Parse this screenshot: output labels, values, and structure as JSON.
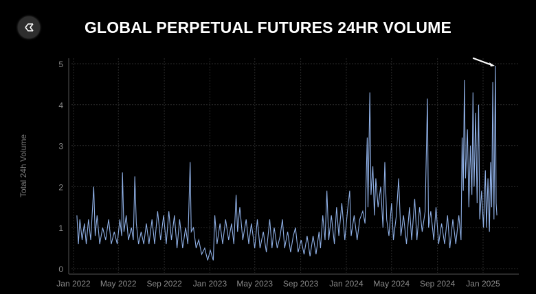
{
  "header": {
    "title": "GLOBAL PERPETUAL FUTURES 24HR VOLUME",
    "logo": "sigma-hexagon-logo"
  },
  "chart_data": {
    "type": "line",
    "title": "GLOBAL PERPETUAL FUTURES 24HR VOLUME",
    "xlabel": "",
    "ylabel": "Total 24h Volume",
    "ylim": [
      0,
      5
    ],
    "yticks": [
      0,
      1,
      2,
      3,
      4,
      5
    ],
    "xlim": [
      "2021-12-20",
      "2025-03-10"
    ],
    "xticks": [
      {
        "date": "2022-01-01",
        "label": "Jan 2022"
      },
      {
        "date": "2022-05-01",
        "label": "May 2022"
      },
      {
        "date": "2022-09-01",
        "label": "Sep 2022"
      },
      {
        "date": "2023-01-01",
        "label": "Jan 2023"
      },
      {
        "date": "2023-05-01",
        "label": "May 2023"
      },
      {
        "date": "2023-09-01",
        "label": "Sep 2023"
      },
      {
        "date": "2024-01-01",
        "label": "Jan 2024"
      },
      {
        "date": "2024-05-01",
        "label": "May 2024"
      },
      {
        "date": "2024-09-01",
        "label": "Sep 2024"
      },
      {
        "date": "2025-01-01",
        "label": "Jan 2025"
      }
    ],
    "grid": true,
    "line_color": "#8fb0e6",
    "annotation": {
      "type": "arrow",
      "points_to": "2025-02-03",
      "color": "#ffffff"
    },
    "points": [
      [
        "2022-01-10",
        1.3
      ],
      [
        "2022-01-14",
        0.6
      ],
      [
        "2022-01-18",
        1.2
      ],
      [
        "2022-01-24",
        0.7
      ],
      [
        "2022-01-30",
        1.1
      ],
      [
        "2022-02-04",
        0.6
      ],
      [
        "2022-02-10",
        1.2
      ],
      [
        "2022-02-16",
        0.7
      ],
      [
        "2022-02-24",
        2.0
      ],
      [
        "2022-02-28",
        0.8
      ],
      [
        "2022-03-05",
        1.3
      ],
      [
        "2022-03-12",
        0.6
      ],
      [
        "2022-03-20",
        1.0
      ],
      [
        "2022-03-28",
        0.7
      ],
      [
        "2022-04-05",
        1.2
      ],
      [
        "2022-04-12",
        0.6
      ],
      [
        "2022-04-20",
        0.9
      ],
      [
        "2022-04-28",
        0.6
      ],
      [
        "2022-05-05",
        1.2
      ],
      [
        "2022-05-10",
        0.8
      ],
      [
        "2022-05-12",
        2.35
      ],
      [
        "2022-05-16",
        0.9
      ],
      [
        "2022-05-22",
        1.3
      ],
      [
        "2022-05-28",
        0.7
      ],
      [
        "2022-06-05",
        1.0
      ],
      [
        "2022-06-10",
        0.7
      ],
      [
        "2022-06-14",
        2.25
      ],
      [
        "2022-06-18",
        1.1
      ],
      [
        "2022-06-24",
        0.6
      ],
      [
        "2022-07-01",
        0.9
      ],
      [
        "2022-07-08",
        0.6
      ],
      [
        "2022-07-15",
        1.1
      ],
      [
        "2022-07-22",
        0.6
      ],
      [
        "2022-07-30",
        1.2
      ],
      [
        "2022-08-06",
        0.6
      ],
      [
        "2022-08-14",
        1.4
      ],
      [
        "2022-08-22",
        0.7
      ],
      [
        "2022-08-30",
        1.3
      ],
      [
        "2022-09-06",
        0.6
      ],
      [
        "2022-09-13",
        1.4
      ],
      [
        "2022-09-20",
        0.7
      ],
      [
        "2022-09-28",
        1.3
      ],
      [
        "2022-10-05",
        0.5
      ],
      [
        "2022-10-12",
        1.2
      ],
      [
        "2022-10-20",
        0.5
      ],
      [
        "2022-10-28",
        1.0
      ],
      [
        "2022-11-03",
        0.6
      ],
      [
        "2022-11-09",
        2.6
      ],
      [
        "2022-11-12",
        0.9
      ],
      [
        "2022-11-18",
        1.0
      ],
      [
        "2022-11-25",
        0.5
      ],
      [
        "2022-12-02",
        0.7
      ],
      [
        "2022-12-10",
        0.35
      ],
      [
        "2022-12-18",
        0.5
      ],
      [
        "2022-12-26",
        0.2
      ],
      [
        "2023-01-02",
        0.45
      ],
      [
        "2023-01-10",
        0.2
      ],
      [
        "2023-01-14",
        1.3
      ],
      [
        "2023-01-20",
        0.6
      ],
      [
        "2023-01-28",
        1.1
      ],
      [
        "2023-02-04",
        0.6
      ],
      [
        "2023-02-12",
        1.2
      ],
      [
        "2023-02-20",
        0.7
      ],
      [
        "2023-02-28",
        1.1
      ],
      [
        "2023-03-06",
        0.6
      ],
      [
        "2023-03-12",
        1.8
      ],
      [
        "2023-03-16",
        0.9
      ],
      [
        "2023-03-22",
        1.5
      ],
      [
        "2023-03-30",
        0.7
      ],
      [
        "2023-04-08",
        1.2
      ],
      [
        "2023-04-15",
        0.6
      ],
      [
        "2023-04-22",
        1.1
      ],
      [
        "2023-05-01",
        0.5
      ],
      [
        "2023-05-08",
        1.2
      ],
      [
        "2023-05-15",
        0.5
      ],
      [
        "2023-05-24",
        0.9
      ],
      [
        "2023-06-01",
        0.4
      ],
      [
        "2023-06-10",
        1.2
      ],
      [
        "2023-06-16",
        0.5
      ],
      [
        "2023-06-22",
        1.0
      ],
      [
        "2023-06-30",
        0.5
      ],
      [
        "2023-07-08",
        0.8
      ],
      [
        "2023-07-14",
        1.2
      ],
      [
        "2023-07-20",
        0.5
      ],
      [
        "2023-07-28",
        0.9
      ],
      [
        "2023-08-05",
        0.4
      ],
      [
        "2023-08-12",
        0.8
      ],
      [
        "2023-08-18",
        1.0
      ],
      [
        "2023-08-25",
        0.4
      ],
      [
        "2023-09-02",
        0.7
      ],
      [
        "2023-09-10",
        0.35
      ],
      [
        "2023-09-18",
        0.8
      ],
      [
        "2023-09-26",
        0.3
      ],
      [
        "2023-10-04",
        0.8
      ],
      [
        "2023-10-12",
        0.35
      ],
      [
        "2023-10-20",
        0.9
      ],
      [
        "2023-10-24",
        0.5
      ],
      [
        "2023-10-30",
        1.3
      ],
      [
        "2023-11-05",
        0.7
      ],
      [
        "2023-11-10",
        1.9
      ],
      [
        "2023-11-15",
        0.7
      ],
      [
        "2023-11-22",
        1.3
      ],
      [
        "2023-11-30",
        0.6
      ],
      [
        "2023-12-06",
        1.5
      ],
      [
        "2023-12-12",
        0.8
      ],
      [
        "2023-12-20",
        1.6
      ],
      [
        "2023-12-28",
        0.7
      ],
      [
        "2024-01-04",
        1.4
      ],
      [
        "2024-01-10",
        1.9
      ],
      [
        "2024-01-14",
        0.8
      ],
      [
        "2024-01-22",
        1.3
      ],
      [
        "2024-01-30",
        0.7
      ],
      [
        "2024-02-06",
        1.2
      ],
      [
        "2024-02-14",
        1.4
      ],
      [
        "2024-02-20",
        1.1
      ],
      [
        "2024-02-26",
        3.2
      ],
      [
        "2024-02-28",
        1.5
      ],
      [
        "2024-03-04",
        4.3
      ],
      [
        "2024-03-07",
        1.8
      ],
      [
        "2024-03-12",
        2.5
      ],
      [
        "2024-03-16",
        1.3
      ],
      [
        "2024-03-20",
        2.2
      ],
      [
        "2024-03-26",
        1.5
      ],
      [
        "2024-04-02",
        2.0
      ],
      [
        "2024-04-08",
        1.0
      ],
      [
        "2024-04-13",
        2.6
      ],
      [
        "2024-04-18",
        1.2
      ],
      [
        "2024-04-24",
        0.8
      ],
      [
        "2024-05-01",
        1.6
      ],
      [
        "2024-05-06",
        0.7
      ],
      [
        "2024-05-14",
        1.3
      ],
      [
        "2024-05-20",
        2.2
      ],
      [
        "2024-05-26",
        0.8
      ],
      [
        "2024-06-02",
        1.3
      ],
      [
        "2024-06-10",
        0.6
      ],
      [
        "2024-06-18",
        1.5
      ],
      [
        "2024-06-24",
        0.7
      ],
      [
        "2024-07-02",
        1.7
      ],
      [
        "2024-07-08",
        0.7
      ],
      [
        "2024-07-15",
        1.5
      ],
      [
        "2024-07-22",
        0.9
      ],
      [
        "2024-07-30",
        1.4
      ],
      [
        "2024-08-05",
        4.15
      ],
      [
        "2024-08-08",
        1.0
      ],
      [
        "2024-08-14",
        1.4
      ],
      [
        "2024-08-22",
        0.7
      ],
      [
        "2024-08-28",
        1.5
      ],
      [
        "2024-09-04",
        0.6
      ],
      [
        "2024-09-12",
        1.1
      ],
      [
        "2024-09-20",
        0.6
      ],
      [
        "2024-09-28",
        1.3
      ],
      [
        "2024-10-04",
        0.5
      ],
      [
        "2024-10-12",
        1.2
      ],
      [
        "2024-10-20",
        0.6
      ],
      [
        "2024-10-28",
        1.3
      ],
      [
        "2024-11-03",
        0.7
      ],
      [
        "2024-11-06",
        3.2
      ],
      [
        "2024-11-09",
        1.9
      ],
      [
        "2024-11-12",
        4.6
      ],
      [
        "2024-11-15",
        2.2
      ],
      [
        "2024-11-20",
        3.4
      ],
      [
        "2024-11-24",
        1.5
      ],
      [
        "2024-11-28",
        3.0
      ],
      [
        "2024-12-02",
        1.8
      ],
      [
        "2024-12-05",
        4.3
      ],
      [
        "2024-12-08",
        2.0
      ],
      [
        "2024-12-12",
        3.8
      ],
      [
        "2024-12-16",
        1.6
      ],
      [
        "2024-12-20",
        4.0
      ],
      [
        "2024-12-23",
        1.2
      ],
      [
        "2024-12-28",
        1.9
      ],
      [
        "2025-01-02",
        1.0
      ],
      [
        "2025-01-07",
        2.4
      ],
      [
        "2025-01-10",
        1.0
      ],
      [
        "2025-01-14",
        2.2
      ],
      [
        "2025-01-18",
        0.9
      ],
      [
        "2025-01-21",
        2.6
      ],
      [
        "2025-01-24",
        1.5
      ],
      [
        "2025-01-27",
        4.55
      ],
      [
        "2025-01-30",
        1.2
      ],
      [
        "2025-02-03",
        4.95
      ],
      [
        "2025-02-05",
        1.6
      ],
      [
        "2025-02-07",
        1.3
      ]
    ]
  }
}
